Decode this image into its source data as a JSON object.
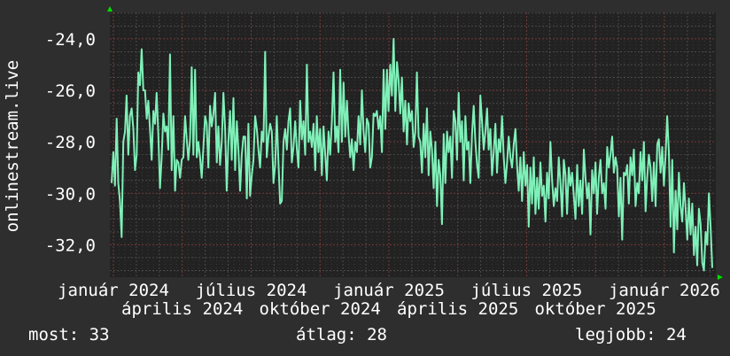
{
  "chart_data": {
    "type": "line",
    "ylabel": "onlinestream.live",
    "ylim": [
      -33.26,
      -22.97
    ],
    "yticks": [
      -24,
      -26,
      -28,
      -30,
      -32
    ],
    "ytick_labels": [
      "-24,0",
      "-26,0",
      "-28,0",
      "-30,0",
      "-32,0"
    ],
    "xtick_labels": [
      "január 2024",
      "április 2024",
      "július 2024",
      "október 2024",
      "január 2025",
      "április 2025",
      "július 2025",
      "október 2025",
      "január 2026"
    ],
    "grid": true,
    "colors": {
      "background": "#2e2e2e",
      "plot": "#222222",
      "line": "#7ff0b8",
      "grid_major": "#7a3a3a",
      "grid_minor": "#4a4a4a",
      "arrow": "#00dd00"
    },
    "values": [
      -29.6,
      -28.4,
      -29.7,
      -27.1,
      -29.6,
      -30.3,
      -31.7,
      -28.0,
      -27.6,
      -26.2,
      -28.5,
      -27.0,
      -26.7,
      -27.5,
      -29.1,
      -28.5,
      -25.3,
      -25.8,
      -24.4,
      -26.0,
      -26.0,
      -27.1,
      -26.4,
      -27.5,
      -28.7,
      -26.8,
      -27.3,
      -26.1,
      -27.7,
      -29.8,
      -28.6,
      -26.9,
      -27.6,
      -27.4,
      -28.3,
      -24.6,
      -29.1,
      -27.0,
      -29.9,
      -28.7,
      -28.8,
      -29.4,
      -28.7,
      -28.6,
      -27.0,
      -27.9,
      -28.7,
      -27.9,
      -25.1,
      -28.5,
      -25.2,
      -28.6,
      -28.0,
      -28.6,
      -29.4,
      -28.2,
      -27.0,
      -27.3,
      -29.0,
      -26.6,
      -27.4,
      -26.9,
      -26.1,
      -28.8,
      -27.4,
      -28.9,
      -28.0,
      -26.1,
      -27.5,
      -29.9,
      -28.0,
      -26.8,
      -28.7,
      -26.3,
      -29.1,
      -27.2,
      -28.3,
      -29.9,
      -28.5,
      -27.8,
      -27.8,
      -30.2,
      -27.3,
      -30.1,
      -29.3,
      -28.7,
      -27.0,
      -27.5,
      -28.3,
      -29.0,
      -27.6,
      -28.0,
      -24.5,
      -28.6,
      -27.8,
      -27.3,
      -27.6,
      -29.6,
      -28.9,
      -27.0,
      -28.8,
      -30.4,
      -30.3,
      -28.0,
      -27.5,
      -28.3,
      -27.2,
      -26.7,
      -28.8,
      -28.2,
      -27.2,
      -28.3,
      -29.0,
      -26.4,
      -27.9,
      -27.2,
      -28.5,
      -25.0,
      -28.0,
      -27.6,
      -28.2,
      -27.3,
      -29.1,
      -27.0,
      -28.4,
      -27.5,
      -29.3,
      -27.4,
      -28.5,
      -29.5,
      -27.6,
      -28.5,
      -27.2,
      -25.3,
      -28.0,
      -27.4,
      -28.4,
      -25.2,
      -28.0,
      -25.7,
      -27.8,
      -26.4,
      -27.7,
      -28.6,
      -27.9,
      -29.1,
      -28.0,
      -28.4,
      -27.0,
      -28.1,
      -26.0,
      -27.6,
      -28.4,
      -27.1,
      -27.3,
      -29.0,
      -28.6,
      -26.9,
      -27.0,
      -26.8,
      -27.5,
      -27.0,
      -28.4,
      -25.2,
      -27.5,
      -25.2,
      -26.8,
      -25.0,
      -26.2,
      -24.0,
      -26.8,
      -24.9,
      -25.6,
      -26.9,
      -25.5,
      -27.6,
      -26.4,
      -28.1,
      -26.5,
      -27.2,
      -26.8,
      -28.2,
      -27.6,
      -25.3,
      -27.8,
      -28.0,
      -29.2,
      -27.3,
      -28.6,
      -26.7,
      -29.3,
      -27.6,
      -28.3,
      -29.8,
      -28.0,
      -30.5,
      -28.7,
      -29.3,
      -31.2,
      -27.7,
      -29.6,
      -27.6,
      -28.4,
      -27.8,
      -29.4,
      -26.8,
      -27.2,
      -28.7,
      -26.1,
      -28.0,
      -27.2,
      -29.5,
      -27.0,
      -28.3,
      -28.0,
      -29.6,
      -27.7,
      -26.6,
      -28.0,
      -28.9,
      -29.4,
      -26.2,
      -27.2,
      -28.3,
      -27.6,
      -26.7,
      -28.3,
      -27.5,
      -29.3,
      -28.4,
      -27.3,
      -29.2,
      -27.9,
      -28.4,
      -27.0,
      -28.6,
      -29.6,
      -28.8,
      -27.8,
      -28.6,
      -29.0,
      -28.1,
      -27.5,
      -28.9,
      -29.9,
      -28.6,
      -30.3,
      -28.4,
      -29.7,
      -28.9,
      -31.3,
      -29.0,
      -30.4,
      -28.6,
      -30.8,
      -29.4,
      -30.6,
      -28.8,
      -30.1,
      -29.7,
      -31.1,
      -29.2,
      -30.2,
      -28.0,
      -29.5,
      -30.5,
      -29.8,
      -30.3,
      -28.6,
      -29.6,
      -30.9,
      -28.7,
      -29.3,
      -30.8,
      -29.0,
      -29.7,
      -29.2,
      -30.1,
      -31.0,
      -28.9,
      -30.5,
      -29.5,
      -30.8,
      -28.3,
      -29.4,
      -30.2,
      -29.6,
      -31.6,
      -29.1,
      -30.0,
      -28.8,
      -30.8,
      -29.4,
      -28.7,
      -30.0,
      -29.6,
      -30.6,
      -28.2,
      -29.0,
      -28.5,
      -27.8,
      -29.2,
      -28.6,
      -29.0,
      -30.9,
      -29.4,
      -31.8,
      -29.2,
      -29.3,
      -28.9,
      -30.4,
      -28.6,
      -29.3,
      -28.3,
      -30.5,
      -29.6,
      -30.0,
      -28.4,
      -29.5,
      -28.0,
      -30.7,
      -29.4,
      -28.5,
      -29.0,
      -30.3,
      -28.8,
      -30.5,
      -28.1,
      -27.9,
      -29.2,
      -28.2,
      -29.7,
      -28.5,
      -27.0,
      -28.4,
      -31.3,
      -28.7,
      -32.3,
      -29.9,
      -31.4,
      -29.2,
      -30.5,
      -31.1,
      -29.6,
      -30.6,
      -31.8,
      -30.2,
      -31.6,
      -30.4,
      -32.4,
      -31.3,
      -32.8,
      -30.6,
      -31.2,
      -32.7,
      -33.0,
      -31.5,
      -32.0,
      -30.0,
      -31.3,
      -32.9
    ]
  },
  "footer": {
    "current": "most: 33",
    "average": "átlag: 28",
    "best": "legjobb: 24"
  }
}
